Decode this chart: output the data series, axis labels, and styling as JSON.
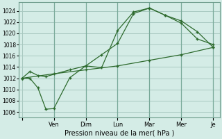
{
  "xlabel": "Pression niveau de la mer( hPa )",
  "bg_color": "#d4ece6",
  "grid_color": "#a8c8c0",
  "line_color": "#2d6a2d",
  "ylim": [
    1005,
    1025.5
  ],
  "yticks": [
    1006,
    1008,
    1010,
    1012,
    1014,
    1016,
    1018,
    1020,
    1022,
    1024
  ],
  "x_tick_positions": [
    0,
    1,
    2,
    3,
    4,
    5,
    6
  ],
  "x_labels": [
    "",
    "Ven",
    "Dim",
    "Lun",
    "Mar",
    "Mer",
    "Je"
  ],
  "series1_x": [
    0.0,
    0.25,
    0.5,
    0.75,
    1.0,
    1.5,
    2.0,
    2.5,
    3.0,
    3.5,
    4.0,
    4.5,
    5.0,
    5.5,
    6.0
  ],
  "series1_y": [
    1012.0,
    1012.0,
    1010.3,
    1006.5,
    1006.6,
    1012.1,
    1014.2,
    1013.9,
    1020.5,
    1023.8,
    1024.5,
    1023.2,
    1022.2,
    1020.3,
    1017.5
  ],
  "series2_x": [
    0.0,
    0.25,
    0.5,
    0.75,
    1.5,
    2.0,
    2.5,
    3.0,
    3.5,
    4.0,
    4.5,
    5.0,
    5.5,
    6.0
  ],
  "series2_y": [
    1012.0,
    1013.2,
    1012.5,
    1012.3,
    1013.5,
    1014.2,
    1016.2,
    1018.2,
    1023.5,
    1024.5,
    1023.2,
    1021.8,
    1019.0,
    1018.0
  ],
  "series3_x": [
    0.0,
    1.0,
    2.0,
    3.0,
    4.0,
    5.0,
    6.0
  ],
  "series3_y": [
    1012.0,
    1012.8,
    1013.5,
    1014.2,
    1015.2,
    1016.2,
    1017.5
  ]
}
